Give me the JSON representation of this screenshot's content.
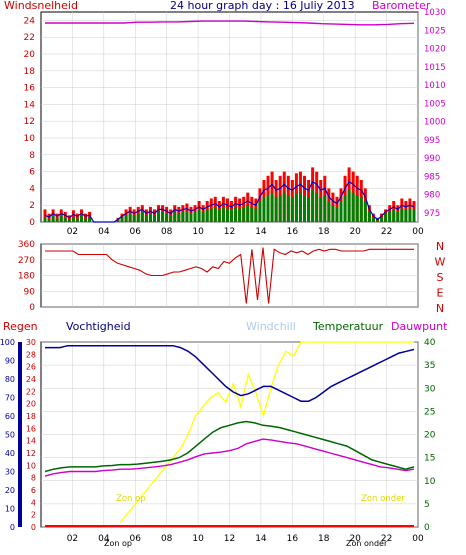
{
  "colors": {
    "speed_gust": "#ff0000",
    "speed_avg": "#008000",
    "speed_mean": "#0000c0",
    "barometer": "#cc00cc",
    "direction": "#cc0000",
    "humidity": "#000099",
    "temperature": "#006600",
    "windchill_sun": "#ffff00",
    "dewpoint": "#cc00cc",
    "rain": "#ff0000",
    "grid": "#cccccc",
    "frame": "#000000",
    "title": "#000080"
  },
  "header": {
    "title": "24 hour graph day : 16 Juliy 2013",
    "left_label": "Windsnelheid",
    "right_label": "Barometer"
  },
  "direction_panel": {
    "compass_labels": [
      "N",
      "W",
      "S",
      "E",
      "N"
    ]
  },
  "bottom_header": {
    "regen": "Regen",
    "vochtigheid": "Vochtigheid",
    "windchill": "Windchill",
    "temperatuur": "Temperatuur",
    "dauwpunt": "Dauwpunt"
  },
  "annotations": {
    "sunrise": "Zon op",
    "sunset": "Zon onder",
    "sunrise_axis": "Zon op",
    "sunset_axis": "Zon onder"
  },
  "chart_data": [
    {
      "type": "line",
      "name": "wind-barometer",
      "xticks": [
        "02",
        "04",
        "06",
        "08",
        "10",
        "12",
        "14",
        "16",
        "18",
        "20",
        "22",
        "00"
      ],
      "y_left_ticks": [
        0,
        2,
        4,
        6,
        8,
        10,
        12,
        14,
        16,
        18,
        20,
        22,
        24
      ],
      "y_right_ticks": [
        975,
        980,
        985,
        990,
        995,
        1000,
        1005,
        1010,
        1015,
        1020,
        1025,
        1030
      ],
      "ylim_left": [
        0,
        25
      ],
      "ylim_right": [
        972.5,
        1030
      ],
      "series": [
        {
          "key": "gust",
          "values": [
            1.5,
            1,
            1.5,
            1,
            1.5,
            1.2,
            0.8,
            1.4,
            1,
            1.5,
            1,
            1.2,
            0,
            0,
            0,
            0,
            0,
            0,
            0.5,
            1,
            1.5,
            1.8,
            1.5,
            1.8,
            2,
            1.5,
            1.8,
            1.5,
            2,
            2,
            1.8,
            1.5,
            2,
            1.8,
            2,
            2.2,
            1.8,
            2,
            2.5,
            2,
            2.5,
            2.8,
            3,
            2.5,
            3,
            2.8,
            2.5,
            3,
            2.8,
            3,
            3.5,
            3,
            2.8,
            4,
            5,
            5.5,
            6,
            5,
            5.5,
            6,
            5.5,
            5,
            5.8,
            6,
            5.5,
            5,
            6.5,
            6,
            5,
            5.5,
            4,
            3.5,
            3,
            4,
            5.5,
            6.5,
            6,
            5.5,
            5,
            4,
            2,
            1,
            0.5,
            1,
            1.5,
            2,
            2.5,
            2,
            2.8,
            2.5,
            2.8,
            2.5
          ]
        },
        {
          "key": "average",
          "values": [
            0.5,
            0.3,
            0.8,
            0.4,
            0.8,
            0.5,
            0.3,
            0.6,
            0.4,
            0.8,
            0.4,
            0.5,
            0,
            0,
            0,
            0,
            0,
            0,
            0.2,
            0.5,
            0.8,
            1,
            0.8,
            1,
            1.2,
            0.8,
            1,
            0.8,
            1.2,
            1.2,
            1,
            0.8,
            1.2,
            1,
            1.2,
            1.3,
            1,
            1.2,
            1.5,
            1.2,
            1.5,
            1.6,
            1.8,
            1.5,
            1.8,
            1.6,
            1.5,
            1.8,
            1.6,
            1.8,
            2,
            1.8,
            1.6,
            2.5,
            3,
            3.2,
            3.5,
            3,
            3.2,
            3.5,
            3.2,
            3,
            3.4,
            3.5,
            3.2,
            3,
            3.8,
            3.5,
            3,
            3.2,
            2.5,
            2,
            1.8,
            2.5,
            3.2,
            3.8,
            3.5,
            3.2,
            3,
            2.5,
            1.2,
            0.5,
            0.2,
            0.5,
            1,
            1.2,
            1.5,
            1.2,
            1.6,
            1.5,
            1.6,
            1.5
          ]
        },
        {
          "key": "mean",
          "values": [
            0.8,
            0.6,
            1,
            0.7,
            1,
            0.8,
            0.5,
            0.9,
            0.7,
            1,
            0.7,
            0.8,
            0,
            0,
            0,
            0,
            0,
            0,
            0.3,
            0.7,
            1,
            1.3,
            1,
            1.3,
            1.5,
            1,
            1.3,
            1,
            1.5,
            1.5,
            1.3,
            1,
            1.5,
            1.3,
            1.5,
            1.6,
            1.3,
            1.5,
            1.8,
            1.5,
            1.8,
            2,
            2.2,
            1.8,
            2.2,
            2,
            1.8,
            2.2,
            2,
            2.2,
            2.5,
            2.2,
            2,
            3,
            3.8,
            4,
            4.5,
            3.8,
            4,
            4.5,
            4,
            3.8,
            4.2,
            4.5,
            4,
            3.8,
            4.8,
            4.5,
            3.8,
            4,
            3,
            2.5,
            2.2,
            3,
            4,
            4.8,
            4.5,
            4,
            3.8,
            3,
            1.5,
            0.7,
            0.3,
            0.7,
            1.2,
            1.5,
            1.8,
            1.5,
            2,
            1.8,
            2,
            1.8
          ]
        },
        {
          "key": "barometer",
          "values": [
            1027,
            1027,
            1027,
            1027,
            1027,
            1027,
            1027,
            1027.2,
            1027.2,
            1027.3,
            1027.3,
            1027.4,
            1027.5,
            1027.5,
            1027.5,
            1027.5,
            1027.4,
            1027.3,
            1027.2,
            1027.1,
            1027,
            1026.8,
            1026.7,
            1026.6,
            1026.5,
            1026.5,
            1026.6,
            1026.8,
            1026.9
          ]
        }
      ]
    },
    {
      "type": "line",
      "name": "wind-direction",
      "xticks": [
        "02",
        "04",
        "06",
        "08",
        "10",
        "12",
        "14",
        "16",
        "18",
        "20",
        "22",
        "00"
      ],
      "y_ticks": [
        0,
        90,
        180,
        270,
        360
      ],
      "ylim": [
        0,
        360
      ],
      "values": [
        320,
        320,
        320,
        320,
        320,
        320,
        300,
        300,
        300,
        300,
        300,
        300,
        270,
        250,
        240,
        230,
        220,
        210,
        190,
        180,
        180,
        180,
        190,
        200,
        200,
        210,
        220,
        230,
        220,
        200,
        230,
        220,
        260,
        250,
        280,
        300,
        20,
        330,
        40,
        340,
        20,
        330,
        310,
        300,
        320,
        310,
        320,
        300,
        320,
        330,
        320,
        330,
        330,
        320,
        320,
        320,
        320,
        320,
        330,
        330,
        330,
        330,
        330,
        330,
        330,
        330,
        330
      ]
    },
    {
      "type": "line",
      "name": "humidity-temperature",
      "xticks": [
        "02",
        "04",
        "06",
        "08",
        "10",
        "12",
        "14",
        "16",
        "18",
        "20",
        "22",
        "00"
      ],
      "y_regen_ticks": [
        0,
        2,
        4,
        6,
        8,
        10,
        12,
        14,
        16,
        18,
        20,
        22,
        24,
        26,
        28,
        30
      ],
      "y_vocht_ticks": [
        30,
        40,
        50,
        60,
        70,
        80,
        90,
        100
      ],
      "y_temp_ticks": [
        0,
        5,
        10,
        15,
        20,
        25,
        30,
        35,
        40
      ],
      "ylim_temp": [
        0,
        40
      ],
      "series": [
        {
          "key": "humidity",
          "values": [
            97,
            97,
            97,
            98,
            98,
            98,
            98,
            98,
            98,
            98,
            98,
            98,
            98,
            98,
            98,
            98,
            98,
            98,
            97,
            95,
            92,
            88,
            84,
            80,
            76,
            73,
            71,
            72,
            74,
            76,
            76,
            74,
            72,
            70,
            68,
            68,
            70,
            73,
            76,
            78,
            80,
            82,
            84,
            86,
            88,
            90,
            92,
            94,
            95,
            96
          ]
        },
        {
          "key": "temperature",
          "values": [
            12,
            12.5,
            12.8,
            13,
            13,
            13,
            13,
            13.2,
            13.3,
            13.5,
            13.5,
            13.6,
            13.8,
            14,
            14.2,
            14.5,
            15,
            16,
            17.5,
            19,
            20.5,
            21.5,
            22,
            22.5,
            22.8,
            22.5,
            22,
            21.8,
            21.5,
            21,
            20.5,
            20,
            19.5,
            19,
            18.5,
            18,
            17.5,
            16.5,
            15.5,
            14.5,
            14,
            13.5,
            13,
            12.5,
            13
          ]
        },
        {
          "key": "windchill",
          "values": [
            null,
            null,
            null,
            null,
            null,
            null,
            null,
            null,
            null,
            null,
            1,
            3,
            5,
            7,
            9,
            11,
            13,
            15,
            17,
            20,
            24,
            26,
            28,
            29,
            27,
            31,
            26,
            33,
            29,
            24,
            30,
            35,
            38,
            37,
            40,
            40,
            40,
            40,
            40,
            40,
            40,
            40,
            40,
            40,
            40,
            40,
            40,
            40,
            40,
            40
          ]
        },
        {
          "key": "dewpoint",
          "values": [
            11,
            11.5,
            11.8,
            12,
            12,
            12,
            12,
            12.2,
            12.3,
            12.5,
            12.5,
            12.6,
            12.8,
            13,
            13.2,
            13.5,
            14,
            14.5,
            15.2,
            15.8,
            16,
            16.2,
            16.5,
            17,
            18,
            18.5,
            19,
            18.8,
            18.5,
            18.2,
            18,
            17.5,
            17,
            16.5,
            16,
            15.5,
            15,
            14.5,
            14,
            13.5,
            13,
            12.8,
            12.5,
            12.2,
            12.5
          ]
        },
        {
          "key": "rain",
          "values": [
            0,
            0,
            0,
            0,
            0,
            0,
            0,
            0,
            0,
            0,
            0,
            0
          ]
        }
      ]
    }
  ]
}
